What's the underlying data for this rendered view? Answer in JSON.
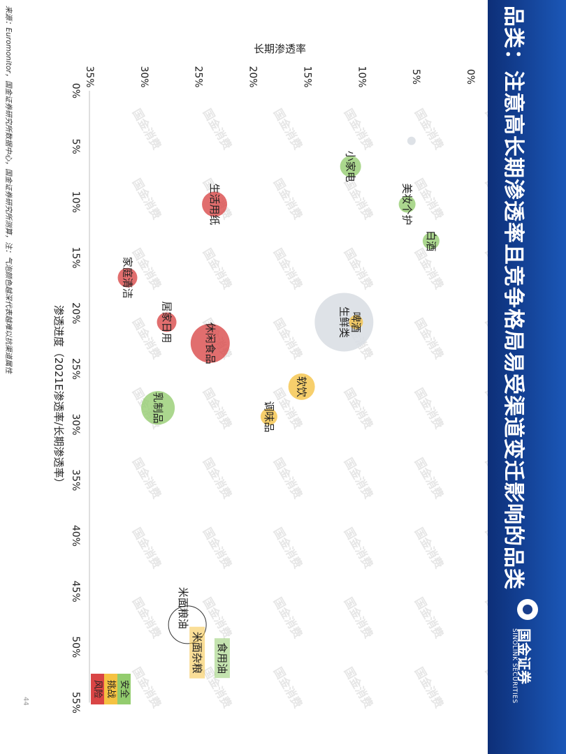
{
  "header": {
    "title": "品类：注意高长期渗透率且竞争格局易受渠道变迁影响的品类",
    "brand": "国金证券",
    "brand_en": "SINOLINK SECURITIES"
  },
  "footer": {
    "source": "来源：Euromonitor，国金证券研究所数据中心，国金证券研究所测算，注：气泡颜色越深代表越难以抗渠道属性",
    "page_number": "44"
  },
  "watermark": "国金消费",
  "colors": {
    "safe": "#93cc6e",
    "challenge": "#f5c242",
    "risk": "#d94545",
    "fresh": "#d8dde3",
    "header": "#1a3f8c"
  },
  "chart_data": {
    "type": "bubble",
    "title": "",
    "xlabel": "渗透进度（2021E渗透率/长期渗透率）",
    "ylabel": "长期渗透率",
    "xlim": [
      0,
      0.55
    ],
    "ylim": [
      0,
      0.35
    ],
    "x_ticks": [
      "0%",
      "5%",
      "10%",
      "15%",
      "20%",
      "25%",
      "30%",
      "35%",
      "40%",
      "45%",
      "50%",
      "55%"
    ],
    "y_ticks": [
      "0%",
      "5%",
      "10%",
      "15%",
      "20%",
      "25%",
      "30%",
      "35%"
    ],
    "grid": false,
    "legend": {
      "placement": "bottom-left",
      "items": [
        {
          "label": "安全",
          "color": "#93cc6e"
        },
        {
          "label": "挑战",
          "color": "#f5c242"
        },
        {
          "label": "风险",
          "color": "#d94545"
        }
      ]
    },
    "annotation": {
      "label": "米面粮油",
      "x": 0.48,
      "y": 0.26,
      "members": [
        "米面杂粮",
        "食用油"
      ]
    },
    "points": [
      {
        "label": "",
        "x": 0.045,
        "y": 0.054,
        "size": 6,
        "category": "fresh"
      },
      {
        "label": "小家电",
        "x": 0.068,
        "y": 0.11,
        "size": 15,
        "category": "safe"
      },
      {
        "label": "美妆个护",
        "x": 0.102,
        "y": 0.058,
        "size": 12,
        "category": "safe"
      },
      {
        "label": "白酒",
        "x": 0.135,
        "y": 0.036,
        "size": 12,
        "category": "safe"
      },
      {
        "label": "生活用纸",
        "x": 0.102,
        "y": 0.235,
        "size": 18,
        "category": "risk"
      },
      {
        "label": "家庭清洁",
        "x": 0.168,
        "y": 0.315,
        "size": 14,
        "category": "risk"
      },
      {
        "label": "居家日用",
        "x": 0.208,
        "y": 0.279,
        "size": 14,
        "category": "risk"
      },
      {
        "label": "休闲食品",
        "x": 0.227,
        "y": 0.239,
        "size": 28,
        "category": "risk"
      },
      {
        "label": "生鲜类",
        "x": 0.208,
        "y": 0.116,
        "size": 42,
        "category": "fresh"
      },
      {
        "label": "啤酒",
        "x": 0.208,
        "y": 0.105,
        "size": 10,
        "category": "challenge"
      },
      {
        "label": "软饮",
        "x": 0.266,
        "y": 0.155,
        "size": 19,
        "category": "challenge"
      },
      {
        "label": "调味品",
        "x": 0.293,
        "y": 0.185,
        "size": 12,
        "category": "challenge"
      },
      {
        "label": "乳制品",
        "x": 0.285,
        "y": 0.287,
        "size": 24,
        "category": "safe"
      },
      {
        "label": "米面杂粮",
        "x": 0.505,
        "y": 0.251,
        "size": 0,
        "category": "challenge"
      },
      {
        "label": "食用油",
        "x": 0.51,
        "y": 0.228,
        "size": 0,
        "category": "safe"
      }
    ]
  }
}
